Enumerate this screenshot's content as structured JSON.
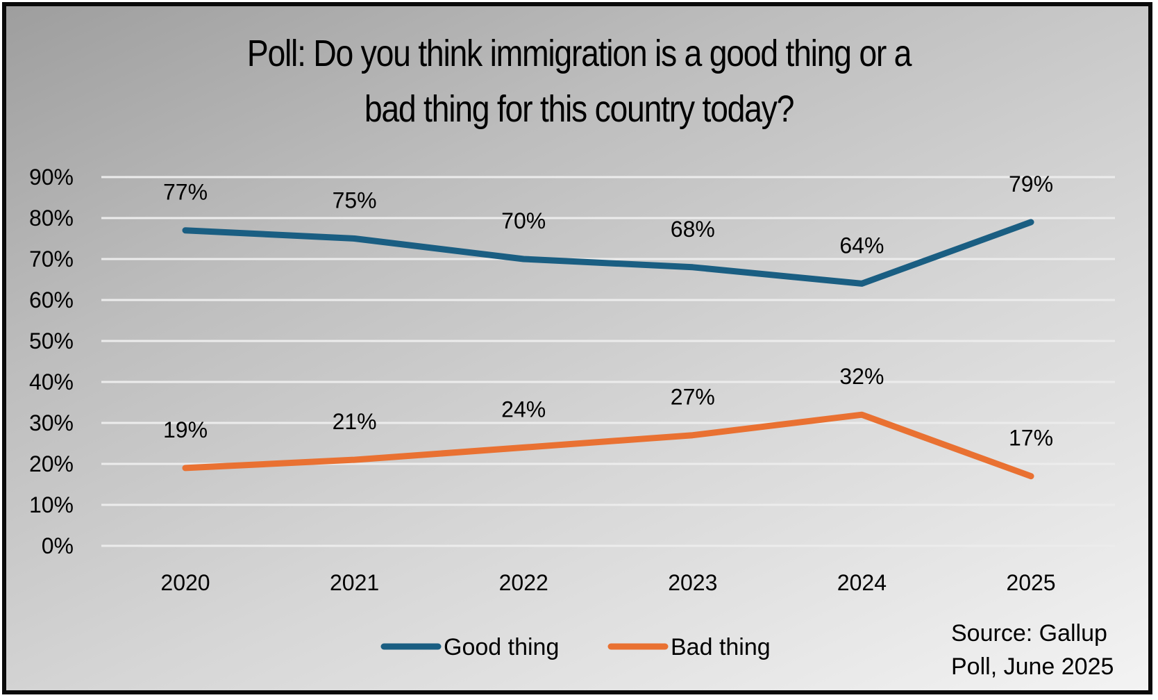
{
  "chart_data": {
    "type": "line",
    "title_lines": [
      "Poll: Do you think immigration is a good thing or a",
      "bad thing for this country today?"
    ],
    "categories": [
      "2020",
      "2021",
      "2022",
      "2023",
      "2024",
      "2025"
    ],
    "series": [
      {
        "name": "Good thing",
        "color": "#1a5e82",
        "values": [
          77,
          75,
          70,
          68,
          64,
          79
        ],
        "labels": [
          "77%",
          "75%",
          "70%",
          "68%",
          "64%",
          "79%"
        ]
      },
      {
        "name": "Bad thing",
        "color": "#e97132",
        "values": [
          19,
          21,
          24,
          27,
          32,
          17
        ],
        "labels": [
          "19%",
          "21%",
          "24%",
          "27%",
          "32%",
          "17%"
        ]
      }
    ],
    "yticks": [
      0,
      10,
      20,
      30,
      40,
      50,
      60,
      70,
      80,
      90
    ],
    "ytick_labels": [
      "0%",
      "10%",
      "20%",
      "30%",
      "40%",
      "50%",
      "60%",
      "70%",
      "80%",
      "90%"
    ],
    "ylim": [
      0,
      90
    ],
    "xlabel": "",
    "ylabel": "",
    "grid": true,
    "legend_position": "bottom-center",
    "source_lines": [
      "Source: Gallup",
      "Poll, June 2025"
    ]
  }
}
